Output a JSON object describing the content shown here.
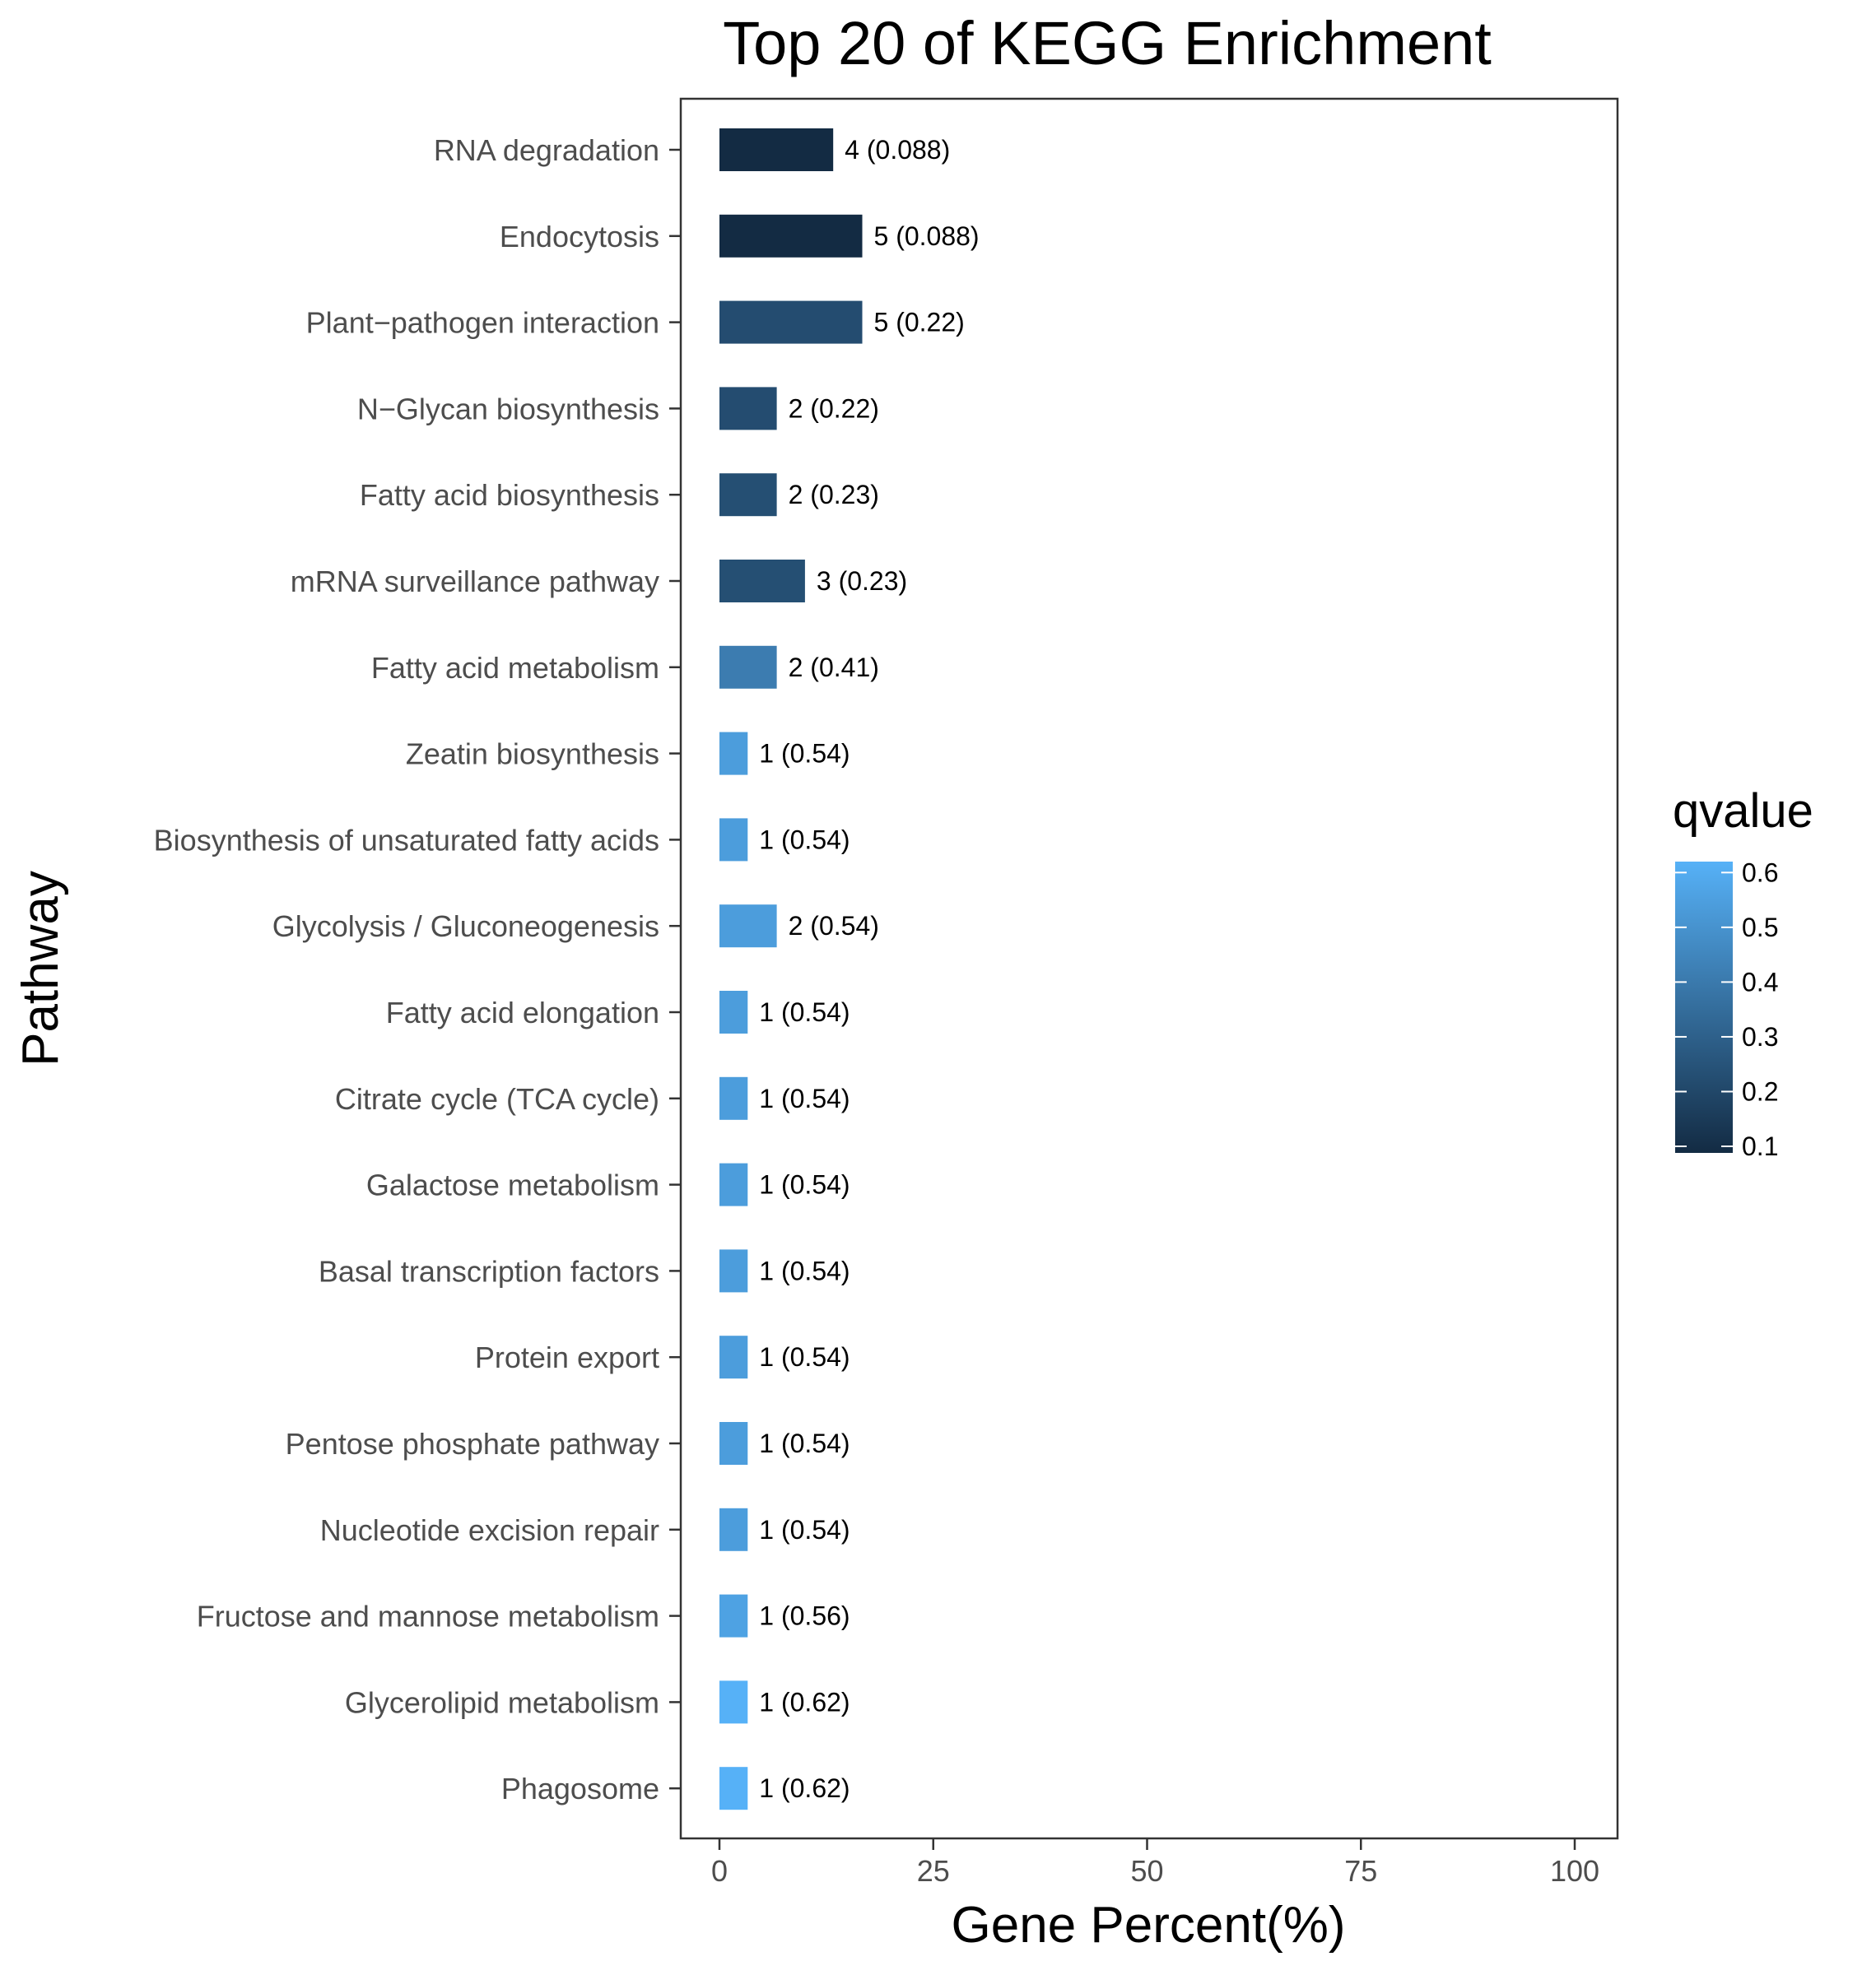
{
  "chart_data": {
    "type": "bar",
    "orientation": "horizontal",
    "title": "Top 20 of KEGG Enrichment",
    "xlabel": "Gene Percent(%)",
    "ylabel": "Pathway",
    "xlim": [
      0,
      100
    ],
    "xticks": [
      "0",
      "25",
      "50",
      "75",
      "100"
    ],
    "grid": false,
    "categories": [
      "RNA degradation",
      "Endocytosis",
      "Plant−pathogen interaction",
      "N−Glycan biosynthesis",
      "Fatty acid biosynthesis",
      "mRNA surveillance pathway",
      "Fatty acid metabolism",
      "Zeatin biosynthesis",
      "Biosynthesis of unsaturated fatty acids",
      "Glycolysis / Gluconeogenesis",
      "Fatty acid elongation",
      "Citrate cycle (TCA cycle)",
      "Galactose metabolism",
      "Basal transcription factors",
      "Protein export",
      "Pentose phosphate pathway",
      "Nucleotide excision repair",
      "Fructose and mannose metabolism",
      "Glycerolipid metabolism",
      "Phagosome"
    ],
    "values": [
      13.3,
      16.7,
      16.7,
      6.7,
      6.7,
      10.0,
      6.7,
      3.3,
      3.3,
      6.7,
      3.3,
      3.3,
      3.3,
      3.3,
      3.3,
      3.3,
      3.3,
      3.3,
      3.3,
      3.3
    ],
    "qvalues": [
      0.088,
      0.088,
      0.22,
      0.22,
      0.23,
      0.23,
      0.41,
      0.54,
      0.54,
      0.54,
      0.54,
      0.54,
      0.54,
      0.54,
      0.54,
      0.54,
      0.54,
      0.56,
      0.62,
      0.62
    ],
    "bar_labels": [
      "4 (0.088)",
      "5 (0.088)",
      "5 (0.22)",
      "2 (0.22)",
      "2 (0.23)",
      "3 (0.23)",
      "2 (0.41)",
      "1 (0.54)",
      "1 (0.54)",
      "2 (0.54)",
      "1 (0.54)",
      "1 (0.54)",
      "1 (0.54)",
      "1 (0.54)",
      "1 (0.54)",
      "1 (0.54)",
      "1 (0.54)",
      "1 (0.56)",
      "1 (0.62)",
      "1 (0.62)"
    ],
    "legend": {
      "title": "qvalue",
      "placement": "right",
      "range": [
        0.088,
        0.62
      ],
      "ticks": [
        "0.1",
        "0.2",
        "0.3",
        "0.4",
        "0.5",
        "0.6"
      ],
      "low_color": "#132B43",
      "high_color": "#56B1F7"
    }
  }
}
